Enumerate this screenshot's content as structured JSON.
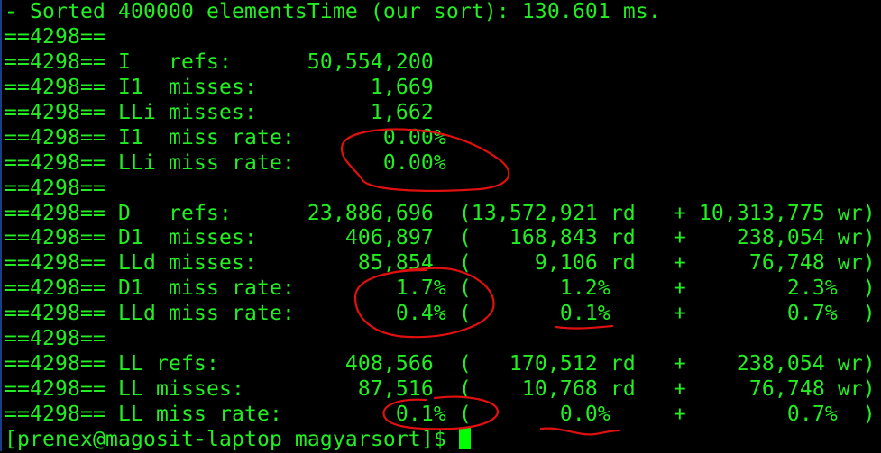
{
  "terminal": {
    "lines": [
      "- Sorted 400000 elementsTime (our sort): 130.601 ms.",
      "==4298==",
      "==4298== I   refs:      50,554,200",
      "==4298== I1  misses:         1,669",
      "==4298== LLi misses:         1,662",
      "==4298== I1  miss rate:       0.00%",
      "==4298== LLi miss rate:       0.00%",
      "==4298==",
      "==4298== D   refs:      23,886,696  (13,572,921 rd   + 10,313,775 wr)",
      "==4298== D1  misses:       406,897  (   168,843 rd   +    238,054 wr)",
      "==4298== LLd misses:        85,854  (     9,106 rd   +     76,748 wr)",
      "==4298== D1  miss rate:        1.7% (       1.2%     +        2.3%  )",
      "==4298== LLd miss rate:        0.4% (       0.1%     +        0.7%  )",
      "==4298==",
      "==4298== LL refs:          408,566  (   170,512 rd   +    238,054 wr)",
      "==4298== LL misses:         87,516  (    10,768 rd   +     76,748 wr)",
      "==4298== LL miss rate:         0.1% (       0.0%     +        0.7%  )"
    ],
    "prompt": "[prenex@magosit-laptop magyarsort]$ ",
    "colors": {
      "text": "#22ee22",
      "background": "#000000",
      "annotation": "#e01010",
      "cursor": "#00ff00"
    }
  }
}
